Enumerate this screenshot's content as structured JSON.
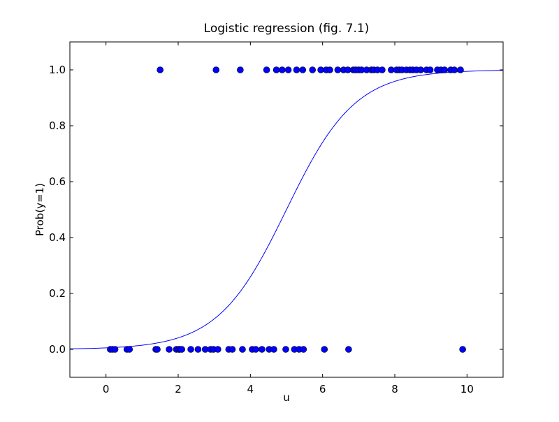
{
  "chart_data": {
    "type": "scatter",
    "title": "Logistic regression (fig. 7.1)",
    "xlabel": "u",
    "ylabel": "Prob(y=1)",
    "xlim": [
      -1,
      11
    ],
    "ylim": [
      -0.1,
      1.1
    ],
    "xticks": [
      0,
      2,
      4,
      6,
      8,
      10
    ],
    "yticks": [
      0.0,
      0.2,
      0.4,
      0.6,
      0.8,
      1.0
    ],
    "xtick_labels": [
      "0",
      "2",
      "4",
      "6",
      "8",
      "10"
    ],
    "ytick_labels": [
      "0.0",
      "0.2",
      "0.4",
      "0.6",
      "0.8",
      "1.0"
    ],
    "grid": false,
    "colors": {
      "points": "#0000ff",
      "point_edge": "#000000",
      "curve": "#0000ff"
    },
    "series": [
      {
        "kind": "scatter",
        "points": [
          {
            "x": 0.12,
            "y": 0
          },
          {
            "x": 0.18,
            "y": 0
          },
          {
            "x": 0.25,
            "y": 0
          },
          {
            "x": 0.58,
            "y": 0
          },
          {
            "x": 0.65,
            "y": 0
          },
          {
            "x": 1.38,
            "y": 0
          },
          {
            "x": 1.42,
            "y": 0
          },
          {
            "x": 1.75,
            "y": 0
          },
          {
            "x": 1.95,
            "y": 0
          },
          {
            "x": 2.02,
            "y": 0
          },
          {
            "x": 2.05,
            "y": 0
          },
          {
            "x": 2.1,
            "y": 0
          },
          {
            "x": 2.35,
            "y": 0
          },
          {
            "x": 2.55,
            "y": 0
          },
          {
            "x": 2.75,
            "y": 0
          },
          {
            "x": 2.9,
            "y": 0
          },
          {
            "x": 2.98,
            "y": 0
          },
          {
            "x": 3.1,
            "y": 0
          },
          {
            "x": 3.4,
            "y": 0
          },
          {
            "x": 3.5,
            "y": 0
          },
          {
            "x": 3.78,
            "y": 0
          },
          {
            "x": 4.05,
            "y": 0
          },
          {
            "x": 4.15,
            "y": 0
          },
          {
            "x": 4.32,
            "y": 0
          },
          {
            "x": 4.52,
            "y": 0
          },
          {
            "x": 4.65,
            "y": 0
          },
          {
            "x": 4.98,
            "y": 0
          },
          {
            "x": 5.22,
            "y": 0
          },
          {
            "x": 5.35,
            "y": 0
          },
          {
            "x": 5.47,
            "y": 0
          },
          {
            "x": 6.05,
            "y": 0
          },
          {
            "x": 6.72,
            "y": 0
          },
          {
            "x": 9.88,
            "y": 0
          },
          {
            "x": 1.5,
            "y": 1
          },
          {
            "x": 3.05,
            "y": 1
          },
          {
            "x": 3.72,
            "y": 1
          },
          {
            "x": 4.45,
            "y": 1
          },
          {
            "x": 4.72,
            "y": 1
          },
          {
            "x": 4.88,
            "y": 1
          },
          {
            "x": 5.05,
            "y": 1
          },
          {
            "x": 5.28,
            "y": 1
          },
          {
            "x": 5.45,
            "y": 1
          },
          {
            "x": 5.72,
            "y": 1
          },
          {
            "x": 5.95,
            "y": 1
          },
          {
            "x": 6.1,
            "y": 1
          },
          {
            "x": 6.2,
            "y": 1
          },
          {
            "x": 6.42,
            "y": 1
          },
          {
            "x": 6.58,
            "y": 1
          },
          {
            "x": 6.7,
            "y": 1
          },
          {
            "x": 6.85,
            "y": 1
          },
          {
            "x": 6.92,
            "y": 1
          },
          {
            "x": 7.0,
            "y": 1
          },
          {
            "x": 7.08,
            "y": 1
          },
          {
            "x": 7.22,
            "y": 1
          },
          {
            "x": 7.35,
            "y": 1
          },
          {
            "x": 7.42,
            "y": 1
          },
          {
            "x": 7.52,
            "y": 1
          },
          {
            "x": 7.65,
            "y": 1
          },
          {
            "x": 7.9,
            "y": 1
          },
          {
            "x": 8.05,
            "y": 1
          },
          {
            "x": 8.12,
            "y": 1
          },
          {
            "x": 8.2,
            "y": 1
          },
          {
            "x": 8.32,
            "y": 1
          },
          {
            "x": 8.42,
            "y": 1
          },
          {
            "x": 8.5,
            "y": 1
          },
          {
            "x": 8.6,
            "y": 1
          },
          {
            "x": 8.72,
            "y": 1
          },
          {
            "x": 8.88,
            "y": 1
          },
          {
            "x": 8.98,
            "y": 1
          },
          {
            "x": 9.18,
            "y": 1
          },
          {
            "x": 9.28,
            "y": 1
          },
          {
            "x": 9.38,
            "y": 1
          },
          {
            "x": 9.55,
            "y": 1
          },
          {
            "x": 9.65,
            "y": 1
          },
          {
            "x": 9.82,
            "y": 1
          }
        ]
      },
      {
        "kind": "line",
        "function": "logistic",
        "midpoint": 5.0,
        "slope": 1.05,
        "x_range": [
          -1,
          11
        ]
      }
    ]
  }
}
